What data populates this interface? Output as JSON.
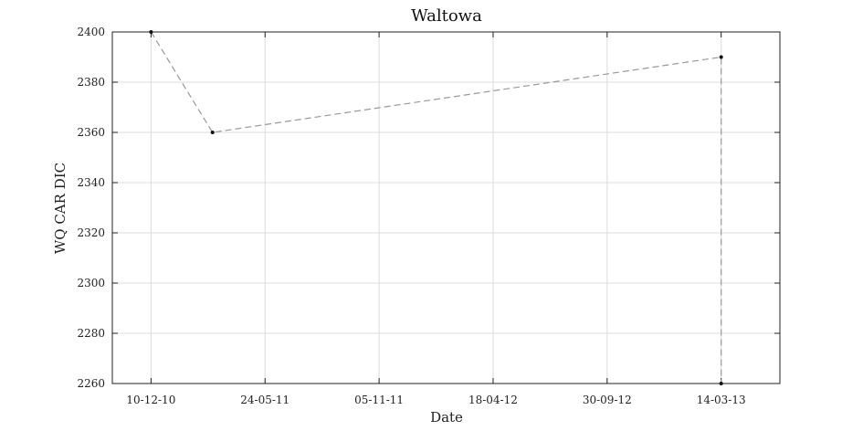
{
  "chart_data": {
    "type": "line",
    "title": "Waltowa",
    "xlabel": "Date",
    "ylabel": "WQ CAR DIC",
    "x_tick_labels": [
      "10-12-10",
      "24-05-11",
      "05-11-11",
      "18-04-12",
      "30-09-12",
      "14-03-13"
    ],
    "x_ticks": [
      "2010-12-10",
      "2011-05-24",
      "2011-11-05",
      "2012-04-18",
      "2012-09-30",
      "2013-03-14"
    ],
    "xlim": [
      "2010-10-15",
      "2013-06-07"
    ],
    "y_ticks": [
      2260,
      2280,
      2300,
      2320,
      2340,
      2360,
      2380,
      2400
    ],
    "ylim": [
      2260,
      2400
    ],
    "grid": true,
    "series": [
      {
        "x": [
          "2010-12-10",
          "2011-03-09",
          "2013-03-14",
          "2013-03-14"
        ],
        "y": [
          2400,
          2360,
          2390,
          2260
        ],
        "line_style": "dashed",
        "line_color": "#999999",
        "marker_color": "#111111"
      }
    ]
  }
}
